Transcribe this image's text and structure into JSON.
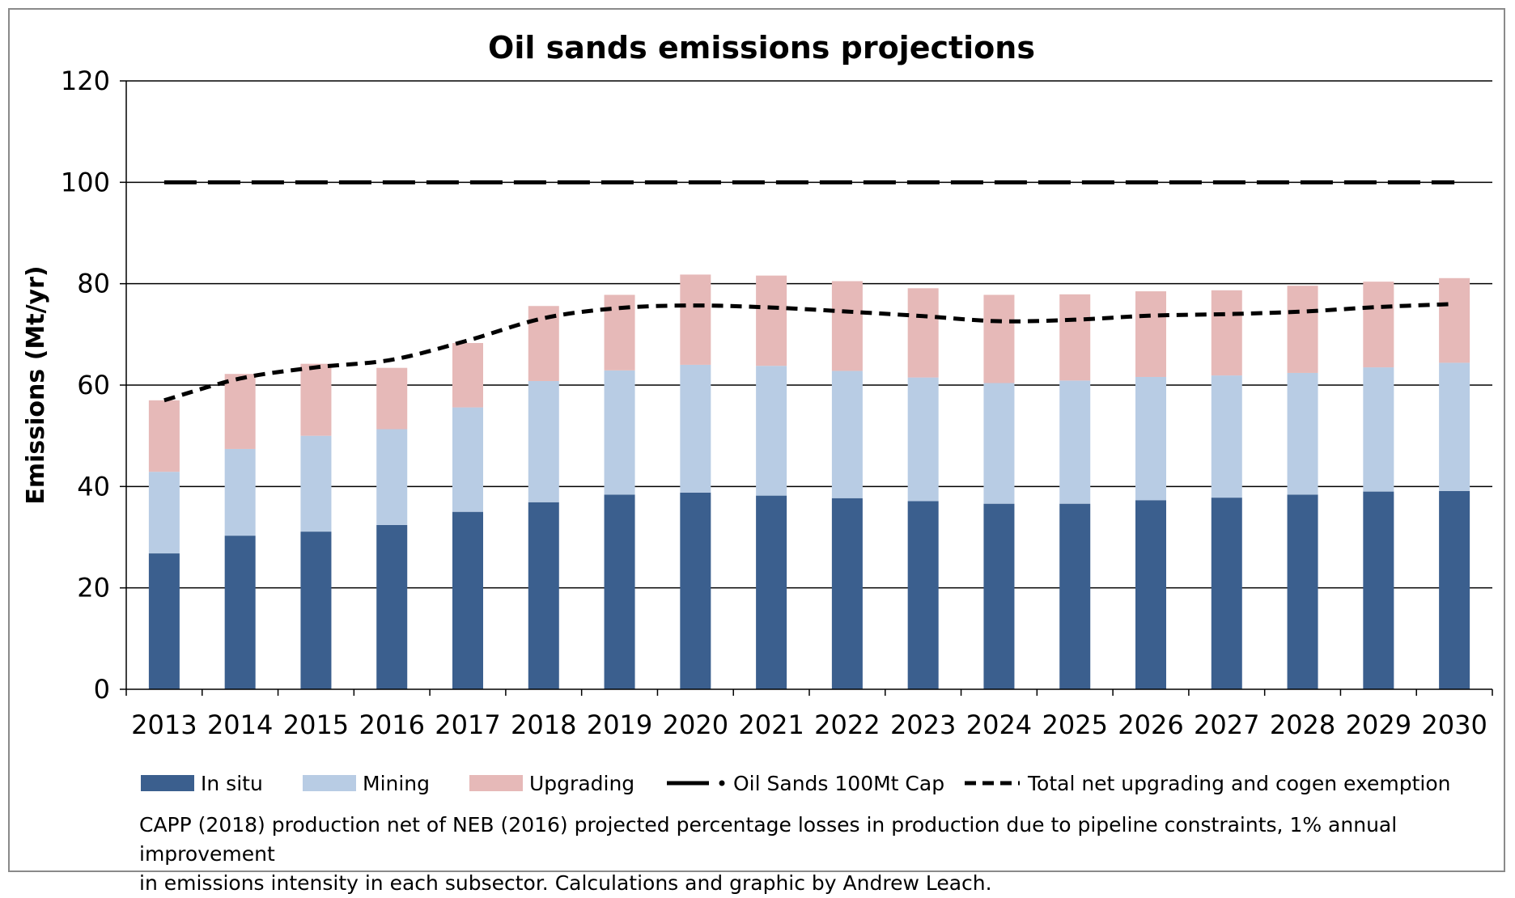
{
  "chart_data": {
    "type": "bar",
    "stacked": true,
    "title": "Oil sands emissions projections",
    "xlabel": "",
    "ylabel": "Emissions (Mt/yr)",
    "ylim": [
      0,
      120
    ],
    "yticks": [
      0,
      20,
      40,
      60,
      80,
      100,
      120
    ],
    "grid": true,
    "legend_position": "bottom",
    "categories": [
      "2013",
      "2014",
      "2015",
      "2016",
      "2017",
      "2018",
      "2019",
      "2020",
      "2021",
      "2022",
      "2023",
      "2024",
      "2025",
      "2026",
      "2027",
      "2028",
      "2029",
      "2030"
    ],
    "series": [
      {
        "name": "In situ",
        "type": "bar",
        "color": "#3B5F8E",
        "values": [
          26.8,
          30.3,
          31.1,
          32.4,
          35.0,
          36.9,
          38.4,
          38.8,
          38.2,
          37.7,
          37.1,
          36.6,
          36.6,
          37.3,
          37.8,
          38.4,
          39.0,
          39.1
        ]
      },
      {
        "name": "Mining",
        "type": "bar",
        "color": "#B8CCE4",
        "values": [
          16.1,
          17.1,
          18.9,
          18.9,
          20.6,
          23.9,
          24.5,
          25.2,
          25.6,
          25.1,
          24.4,
          23.8,
          24.3,
          24.3,
          24.1,
          24.0,
          24.5,
          25.3
        ]
      },
      {
        "name": "Upgrading",
        "type": "bar",
        "color": "#E6B9B8",
        "values": [
          14.1,
          14.8,
          14.2,
          12.1,
          12.7,
          14.8,
          14.9,
          17.8,
          17.8,
          17.7,
          17.6,
          17.4,
          17.0,
          16.9,
          16.8,
          17.2,
          16.9,
          16.7
        ]
      },
      {
        "name": "Oil Sands 100Mt Cap",
        "type": "line",
        "style": "long-dash",
        "color": "#000000",
        "values": [
          100,
          100,
          100,
          100,
          100,
          100,
          100,
          100,
          100,
          100,
          100,
          100,
          100,
          100,
          100,
          100,
          100,
          100
        ]
      },
      {
        "name": "Total net upgrading and cogen exemption",
        "type": "line",
        "style": "short-dash",
        "color": "#000000",
        "values": [
          57.0,
          61.3,
          63.5,
          65.0,
          68.8,
          73.2,
          75.2,
          75.7,
          75.3,
          74.5,
          73.6,
          72.6,
          72.9,
          73.7,
          74.0,
          74.5,
          75.4,
          76.0
        ]
      }
    ]
  },
  "note": {
    "line1": "CAPP (2018) production net of NEB (2016) projected percentage losses in production due to pipeline constraints, 1% annual improvement",
    "line2": "in emissions intensity in each subsector. Calculations and graphic by Andrew Leach."
  }
}
